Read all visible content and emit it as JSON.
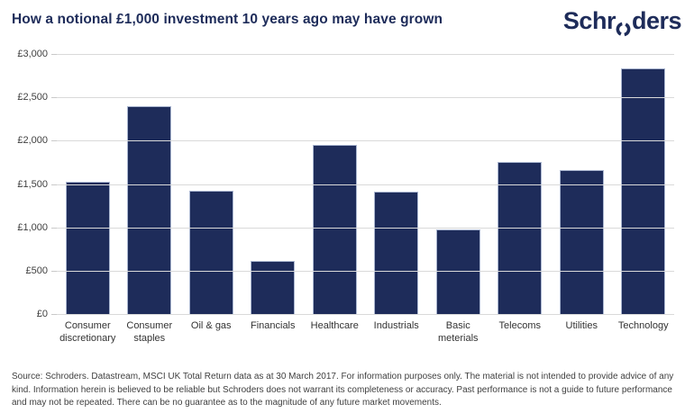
{
  "header": {
    "title": "How a notional £1,000 investment 10 years ago may have grown",
    "logo_text_left": "Schr",
    "logo_text_right": "ders",
    "logo_name": "Schroders",
    "brand_color": "#1e2c5a"
  },
  "chart_data": {
    "type": "bar",
    "title": "How a notional £1,000 investment 10 years ago may have grown",
    "categories": [
      "Consumer discretionary",
      "Consumer staples",
      "Oil & gas",
      "Financials",
      "Healthcare",
      "Industrials",
      "Basic meterials",
      "Telecoms",
      "Utilities",
      "Technology"
    ],
    "values": [
      1530,
      2400,
      1420,
      615,
      1950,
      1410,
      980,
      1755,
      1660,
      2830
    ],
    "value_unit": "GBP",
    "bar_color": "#1e2c5a",
    "grid": true,
    "gridline_color": "#d9d9d9",
    "xlabel": "",
    "ylabel": "",
    "ylim": [
      0,
      3000
    ],
    "y_ticks": [
      {
        "value": 3000,
        "label": "£3,000"
      },
      {
        "value": 2500,
        "label": "£2,500"
      },
      {
        "value": 2000,
        "label": "£2,000"
      },
      {
        "value": 1500,
        "label": "£1,500"
      },
      {
        "value": 1000,
        "label": "£1,000"
      },
      {
        "value": 500,
        "label": "£500"
      },
      {
        "value": 0,
        "label": "£0"
      }
    ],
    "legend": null
  },
  "footer": {
    "disclaimer": "Source: Schroders. Datastream, MSCI UK Total Return data as at 30 March 2017. For information purposes only. The material is not intended to provide advice of any kind. Information herein is believed to be reliable but Schroders does not warrant its completeness or accuracy. Past performance is not a guide to future performance and may not be repeated. There can be no guarantee as to the magnitude of any future market movements."
  }
}
